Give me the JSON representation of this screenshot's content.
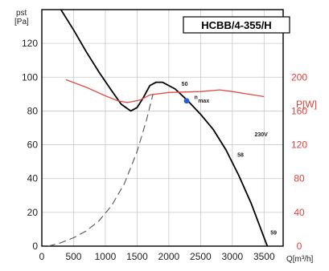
{
  "chart_data": {
    "type": "line",
    "title": "HCBB/4-355/H",
    "ylabel_left": "pst",
    "ylabel_left_unit": "[Pa]",
    "ylabel_right": "P[W]",
    "xlabel": "Q[m³/h]",
    "xlim": [
      0,
      3800
    ],
    "ylim_left": [
      0,
      140
    ],
    "ylim_right": [
      0,
      280
    ],
    "x_ticks": [
      0,
      500,
      1000,
      1500,
      2000,
      2500,
      3000,
      3500
    ],
    "y_left_ticks": [
      0,
      20,
      40,
      60,
      80,
      100,
      120
    ],
    "y_right_ticks": [
      0,
      40,
      80,
      120,
      160,
      200
    ],
    "grid": true,
    "series": [
      {
        "axis": "left",
        "color": "#000000",
        "values": [
          [
            300,
            140
          ],
          [
            500,
            128
          ],
          [
            700,
            115
          ],
          [
            900,
            103
          ],
          [
            1100,
            92
          ],
          [
            1250,
            84
          ],
          [
            1400,
            80
          ],
          [
            1500,
            82
          ],
          [
            1600,
            88
          ],
          [
            1700,
            95
          ],
          [
            1800,
            97
          ],
          [
            1900,
            97
          ],
          [
            2100,
            93
          ],
          [
            2300,
            86
          ],
          [
            2500,
            78
          ],
          [
            2700,
            69
          ],
          [
            2900,
            57
          ],
          [
            3100,
            42
          ],
          [
            3300,
            25
          ],
          [
            3450,
            10
          ],
          [
            3550,
            0
          ]
        ]
      },
      {
        "axis": "right",
        "color": "#e04a44",
        "values": [
          [
            380,
            197
          ],
          [
            700,
            188
          ],
          [
            1000,
            178
          ],
          [
            1200,
            172
          ],
          [
            1350,
            170
          ],
          [
            1550,
            173
          ],
          [
            1700,
            179
          ],
          [
            2000,
            182
          ],
          [
            2500,
            183
          ],
          [
            2800,
            185
          ],
          [
            3000,
            183
          ],
          [
            3250,
            180
          ],
          [
            3500,
            177
          ]
        ]
      },
      {
        "axis": "left",
        "color": "#555555",
        "dashed": true,
        "values": [
          [
            100,
            0
          ],
          [
            300,
            2
          ],
          [
            500,
            5
          ],
          [
            700,
            9
          ],
          [
            900,
            15
          ],
          [
            1100,
            24
          ],
          [
            1300,
            37
          ],
          [
            1500,
            56
          ],
          [
            1650,
            75
          ],
          [
            1750,
            90
          ]
        ]
      }
    ],
    "annotations": [
      {
        "text": "50",
        "x": 2200,
        "y": 95
      },
      {
        "text": "n",
        "x": 2400,
        "y": 87
      },
      {
        "text": "max",
        "x": 2460,
        "y": 85
      },
      {
        "text": "230V",
        "x": 3350,
        "y": 65
      },
      {
        "text": "58",
        "x": 3080,
        "y": 53
      },
      {
        "text": "59",
        "x": 3600,
        "y": 7
      }
    ],
    "operating_point": {
      "x": 2280,
      "y": 86,
      "color": "#2a5ad8"
    }
  }
}
